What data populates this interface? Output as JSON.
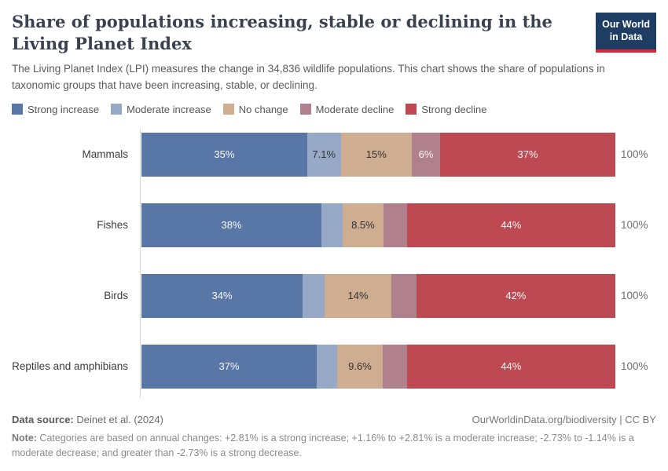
{
  "header": {
    "title": "Share of populations increasing, stable or declining in the Living Planet Index",
    "subtitle": "The Living Planet Index (LPI) measures the change in 34,836 wildlife populations. This chart shows the share of populations in taxonomic groups that have been increasing, stable, or declining.",
    "logo": {
      "line1": "Our World",
      "line2": "in Data"
    }
  },
  "legend": [
    {
      "label": "Strong increase",
      "color": "#5877a7"
    },
    {
      "label": "Moderate increase",
      "color": "#97a9c6"
    },
    {
      "label": "No change",
      "color": "#cfad90"
    },
    {
      "label": "Moderate decline",
      "color": "#b0808d"
    },
    {
      "label": "Strong decline",
      "color": "#bd4952"
    }
  ],
  "chart_data": {
    "type": "bar",
    "orientation": "horizontal-stacked",
    "xlim": [
      0,
      100
    ],
    "grid": false,
    "legend_position": "top",
    "row_total_label": "100%",
    "categories": [
      "Mammals",
      "Fishes",
      "Birds",
      "Reptiles and amphibians"
    ],
    "series": [
      {
        "name": "Strong increase",
        "color": "#5877a7",
        "label_text": "light",
        "values": [
          35,
          38,
          34,
          37
        ],
        "labels": [
          "35%",
          "38%",
          "34%",
          "37%"
        ]
      },
      {
        "name": "Moderate increase",
        "color": "#97a9c6",
        "label_text": "dark",
        "values": [
          7.1,
          4.5,
          4.7,
          4.3
        ],
        "labels": [
          "7.1%",
          "",
          "",
          ""
        ]
      },
      {
        "name": "No change",
        "color": "#cfad90",
        "label_text": "dark",
        "values": [
          15,
          8.5,
          14,
          9.6
        ],
        "labels": [
          "15%",
          "8.5%",
          "14%",
          "9.6%"
        ]
      },
      {
        "name": "Moderate decline",
        "color": "#b0808d",
        "label_text": "light",
        "values": [
          6,
          5,
          5.3,
          5.1
        ],
        "labels": [
          "6%",
          "",
          "",
          ""
        ]
      },
      {
        "name": "Strong decline",
        "color": "#bd4952",
        "label_text": "light",
        "values": [
          37,
          44,
          42,
          44
        ],
        "labels": [
          "37%",
          "44%",
          "42%",
          "44%"
        ]
      }
    ]
  },
  "footer": {
    "source_label": "Data source:",
    "source_value": " Deinet et al. (2024)",
    "right_text": "OurWorldinData.org/biodiversity | CC BY",
    "note_label": "Note:",
    "note_value": " Categories are based on annual changes: +2.81% is a strong increase; +1.16% to +2.81% is a moderate increase; -2.73% to -1.14% is a moderate decrease; and greater than -2.73% is a strong decrease."
  },
  "colors": {
    "title": "#3a4250",
    "logo_bg": "#1d3d63",
    "logo_accent": "#e0243a",
    "bar_label_light": "#f9f7f5",
    "bar_label_dark": "#323232",
    "axis_line": "#d8d8d8"
  }
}
